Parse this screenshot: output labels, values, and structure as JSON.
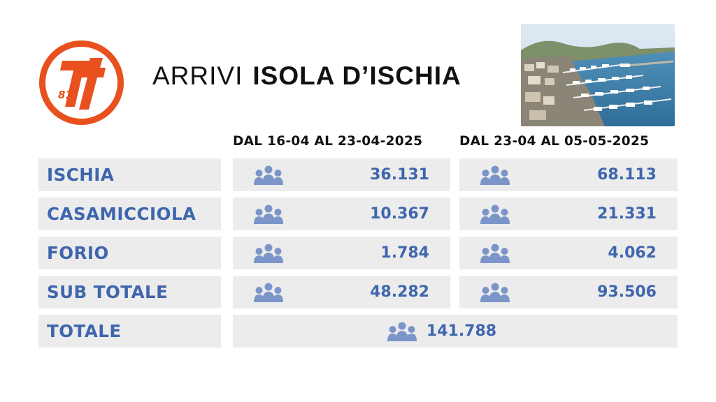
{
  "header": {
    "logo_text": "81",
    "title_light": "ARRIVI",
    "title_bold": "ISOLA D’ISCHIA"
  },
  "colors": {
    "logo_orange": "#e8501e",
    "value_blue": "#3f66ad",
    "cell_bg": "#ececec"
  },
  "columns": [
    "DAL 16-04 AL 23-04-2025",
    "DAL 23-04 AL 05-05-2025"
  ],
  "rows": [
    {
      "label": "ISCHIA",
      "values": [
        "36.131",
        "68.113"
      ]
    },
    {
      "label": "CASAMICCIOLA",
      "values": [
        "10.367",
        "21.331"
      ]
    },
    {
      "label": "FORIO",
      "values": [
        "1.784",
        "4.062"
      ]
    },
    {
      "label": "SUB TOTALE",
      "values": [
        "48.282",
        "93.506"
      ]
    }
  ],
  "total": {
    "label": "TOTALE",
    "value": "141.788"
  },
  "icons": {
    "people": "people-group-icon",
    "photo": "harbor-photo"
  }
}
